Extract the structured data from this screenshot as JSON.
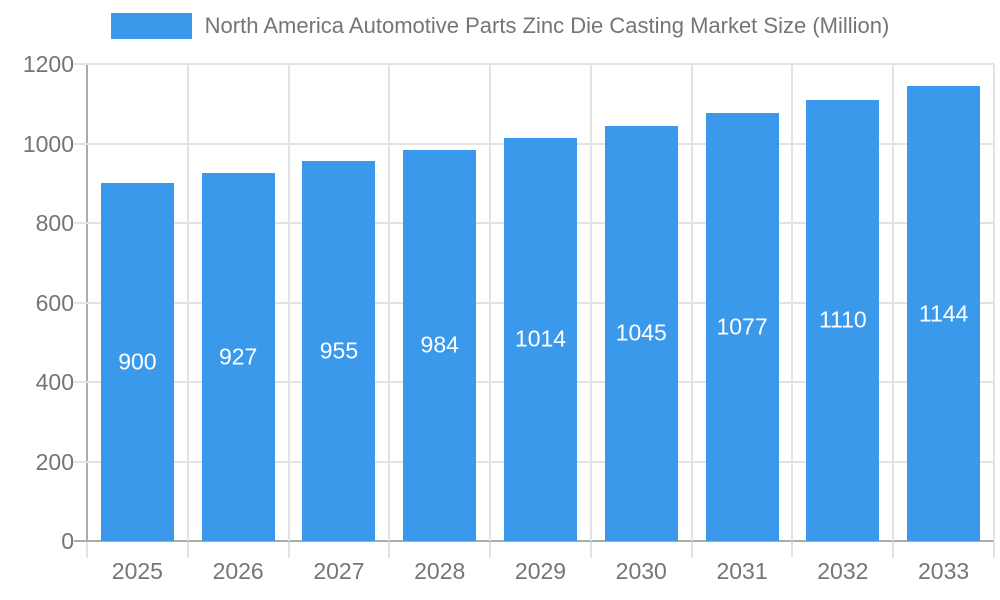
{
  "legend": {
    "label": "North America Automotive Parts Zinc Die Casting Market Size (Million)"
  },
  "chart_data": {
    "type": "bar",
    "title": "North America Automotive Parts Zinc Die Casting Market Size (Million)",
    "categories": [
      "2025",
      "2026",
      "2027",
      "2028",
      "2029",
      "2030",
      "2031",
      "2032",
      "2033"
    ],
    "values": [
      900,
      927,
      955,
      984,
      1014,
      1045,
      1077,
      1110,
      1144
    ],
    "xlabel": "",
    "ylabel": "",
    "ylim": [
      0,
      1200
    ],
    "yticks": [
      0,
      200,
      400,
      600,
      800,
      1000,
      1200
    ],
    "grid": true,
    "legend_position": "top",
    "bar_labels_inside": true,
    "colors": {
      "bar": "#3B99EC",
      "bar_label": "#FFFFFF",
      "grid": "#E3E3E3",
      "axis": "#ABABAB",
      "text": "#757575",
      "background": "#FFFFFF"
    }
  }
}
